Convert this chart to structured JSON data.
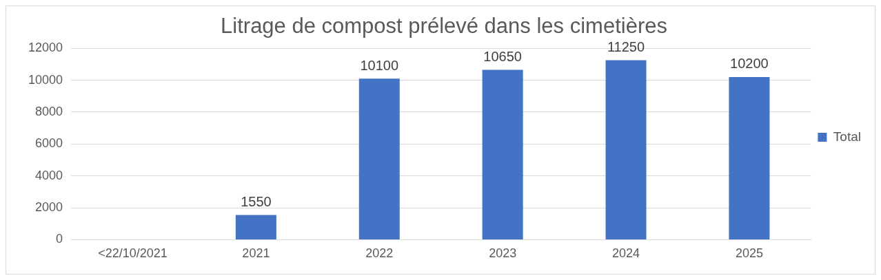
{
  "chart_data": {
    "type": "bar",
    "title": "Litrage de compost prélevé dans les cimetières",
    "categories": [
      "<22/10/2021",
      "2021",
      "2022",
      "2023",
      "2024",
      "2025"
    ],
    "series": [
      {
        "name": "Total",
        "color": "#4472c4",
        "values": [
          null,
          1550,
          10100,
          10650,
          11250,
          10200
        ]
      }
    ],
    "ylim": [
      0,
      12000
    ],
    "yticks": [
      0,
      2000,
      4000,
      6000,
      8000,
      10000,
      12000
    ],
    "grid": "y",
    "legend": "right",
    "data_labels": true
  }
}
